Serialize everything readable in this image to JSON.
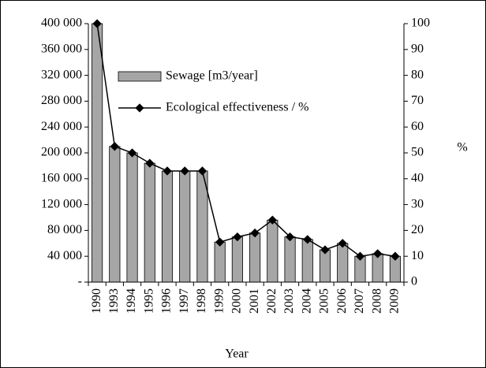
{
  "chart_data": {
    "type": "bar_line",
    "xlabel": "Year",
    "y2label": "%",
    "categories": [
      "1990",
      "1993",
      "1994",
      "1995",
      "1996",
      "1997",
      "1998",
      "1999",
      "2000",
      "2001",
      "2002",
      "2003",
      "2004",
      "2005",
      "2006",
      "2007",
      "2008",
      "2009"
    ],
    "series": [
      {
        "name": "Sewage [m3/year]",
        "color": "#a6a6a6",
        "type": "bar",
        "values": [
          400000,
          210000,
          200000,
          184000,
          172000,
          172000,
          172000,
          62000,
          70000,
          76000,
          96000,
          70000,
          66000,
          50000,
          60000,
          40000,
          44000,
          40000
        ]
      },
      {
        "name": "Ecological effectiveness / %",
        "color": "#000000",
        "type": "line",
        "axis": "y2",
        "values": [
          100,
          52.5,
          50,
          46,
          43,
          43,
          43,
          15.5,
          17.5,
          19,
          24,
          17.5,
          16.5,
          12.5,
          15,
          10,
          11,
          10
        ]
      }
    ],
    "ylim": [
      0,
      400000
    ],
    "yticks": [
      {
        "value": 0,
        "label": "-"
      },
      {
        "value": 40000,
        "label": "40 000"
      },
      {
        "value": 80000,
        "label": "80 000"
      },
      {
        "value": 120000,
        "label": "120 000"
      },
      {
        "value": 160000,
        "label": "160 000"
      },
      {
        "value": 200000,
        "label": "200 000"
      },
      {
        "value": 240000,
        "label": "240 000"
      },
      {
        "value": 280000,
        "label": "280 000"
      },
      {
        "value": 320000,
        "label": "320 000"
      },
      {
        "value": 360000,
        "label": "360 000"
      },
      {
        "value": 400000,
        "label": "400 000"
      }
    ],
    "y2lim": [
      0,
      100
    ],
    "y2ticks": [
      0,
      10,
      20,
      30,
      40,
      50,
      60,
      70,
      80,
      90,
      100
    ]
  }
}
